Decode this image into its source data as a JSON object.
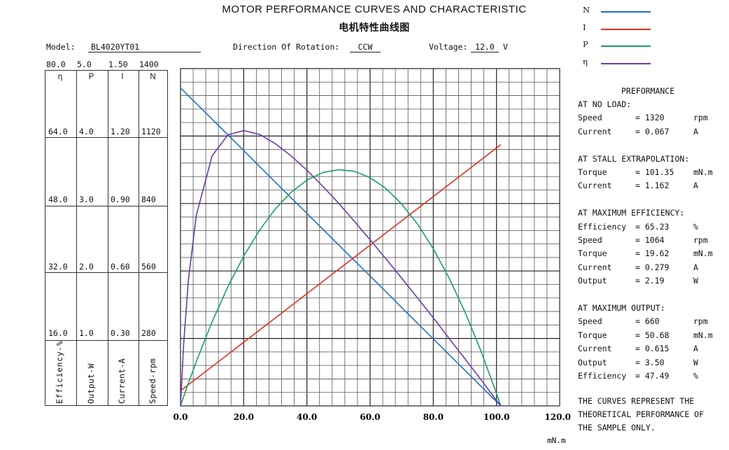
{
  "header": {
    "title": "MOTOR PERFORMANCE CURVES AND CHARACTERISTIC",
    "subtitle": "电机特性曲线图",
    "model_label": "Model:",
    "model": "BL4020YT01",
    "direction_label": "Direction Of Rotation:",
    "direction": "CCW",
    "voltage_label": "Voltage:",
    "voltage": "12.0",
    "voltage_unit": "V"
  },
  "legend": [
    {
      "name": "N",
      "color": "#1f6fc0"
    },
    {
      "name": "I",
      "color": "#e0301e"
    },
    {
      "name": "P",
      "color": "#1aa060"
    },
    {
      "name": "η",
      "color": "#6a3aa8"
    }
  ],
  "axis_table": {
    "columns": [
      {
        "symbol": "η",
        "label": "Efficiency-%",
        "ticks": [
          "80.0",
          "64.0",
          "48.0",
          "32.0",
          "16.0"
        ]
      },
      {
        "symbol": "P",
        "label": "Output-W",
        "ticks": [
          "5.0",
          "4.0",
          "3.0",
          "2.0",
          "1.0"
        ]
      },
      {
        "symbol": "I",
        "label": "Current-A",
        "ticks": [
          "1.50",
          "1.20",
          "0.90",
          "0.60",
          "0.30"
        ]
      },
      {
        "symbol": "N",
        "label": "Speed-rpm",
        "ticks": [
          "1400",
          "1120",
          "840",
          "560",
          "280"
        ]
      }
    ]
  },
  "performance": {
    "title": "PREFORMANCE",
    "sections": [
      {
        "heading": "AT NO LOAD:",
        "rows": [
          [
            "Speed",
            "= 1320",
            "rpm"
          ],
          [
            "Current",
            "= 0.067",
            "A"
          ]
        ]
      },
      {
        "heading": "AT STALL EXTRAPOLATION:",
        "rows": [
          [
            "Torque",
            "= 101.35",
            "mN.m"
          ],
          [
            "Current",
            "= 1.162",
            "A"
          ]
        ]
      },
      {
        "heading": "AT MAXIMUM EFFICIENCY:",
        "rows": [
          [
            "Efficiency",
            "= 65.23",
            "%"
          ],
          [
            "Speed",
            "= 1064",
            "rpm"
          ],
          [
            "Torque",
            "= 19.62",
            "mN.m"
          ],
          [
            "Current",
            "= 0.279",
            "A"
          ],
          [
            "Output",
            "= 2.19",
            "W"
          ]
        ]
      },
      {
        "heading": "AT MAXIMUM OUTPUT:",
        "rows": [
          [
            "Speed",
            "= 660",
            "rpm"
          ],
          [
            "Torque",
            "= 50.68",
            "mN.m"
          ],
          [
            "Current",
            "= 0.615",
            "A"
          ],
          [
            "Output",
            "= 3.50",
            "W"
          ],
          [
            "Efficiency",
            "= 47.49",
            "%"
          ]
        ]
      }
    ],
    "note": [
      "THE CURVES REPRESENT THE",
      "THEORETICAL PERFORMANCE OF",
      "THE SAMPLE ONLY."
    ]
  },
  "chart_data": {
    "type": "line",
    "title": "MOTOR PERFORMANCE CURVES AND CHARACTERISTIC",
    "xlabel": "mN.m",
    "xlim": [
      0,
      120
    ],
    "xticks": [
      "0.0",
      "20.0",
      "40.0",
      "60.0",
      "80.0",
      "100.0",
      "120.0"
    ],
    "grid": true,
    "legend": "top-right",
    "x": [
      0,
      1,
      2.5,
      5,
      10,
      15,
      20,
      25,
      30,
      35,
      40,
      45,
      50,
      55,
      60,
      65,
      70,
      75,
      80,
      85,
      90,
      95,
      100,
      101.35
    ],
    "series": [
      {
        "name": "N",
        "unit": "rpm",
        "ylim": [
          0,
          1400
        ],
        "color": "#1f6fc0",
        "values": [
          1320,
          1307,
          1287,
          1255,
          1190,
          1125,
          1060,
          994,
          929,
          864,
          799,
          734,
          669,
          604,
          539,
          474,
          408,
          343,
          278,
          213,
          148,
          83,
          18,
          0
        ]
      },
      {
        "name": "I",
        "unit": "A",
        "ylim": [
          0,
          1.5
        ],
        "color": "#e0301e",
        "values": [
          0.067,
          0.078,
          0.094,
          0.121,
          0.175,
          0.229,
          0.283,
          0.337,
          0.391,
          0.445,
          0.499,
          0.553,
          0.607,
          0.661,
          0.715,
          0.769,
          0.823,
          0.877,
          0.931,
          0.985,
          1.039,
          1.093,
          1.147,
          1.162
        ]
      },
      {
        "name": "P",
        "unit": "W",
        "ylim": [
          0,
          5
        ],
        "color": "#1aa060",
        "values": [
          0,
          0.137,
          0.337,
          0.657,
          1.246,
          1.767,
          2.219,
          2.603,
          2.92,
          3.167,
          3.347,
          3.459,
          3.502,
          3.477,
          3.384,
          3.223,
          2.993,
          2.696,
          2.33,
          1.896,
          1.394,
          0.824,
          0.184,
          0
        ]
      },
      {
        "name": "η",
        "unit": "%",
        "ylim": [
          0,
          80
        ],
        "color": "#6a3aa8",
        "values": [
          0,
          14.7,
          29.9,
          45.2,
          59.3,
          64.3,
          65.3,
          64.4,
          62.2,
          59.3,
          55.9,
          52.1,
          48.1,
          43.8,
          39.4,
          34.9,
          30.3,
          25.6,
          20.9,
          16.0,
          11.2,
          6.3,
          1.3,
          0
        ]
      }
    ]
  }
}
